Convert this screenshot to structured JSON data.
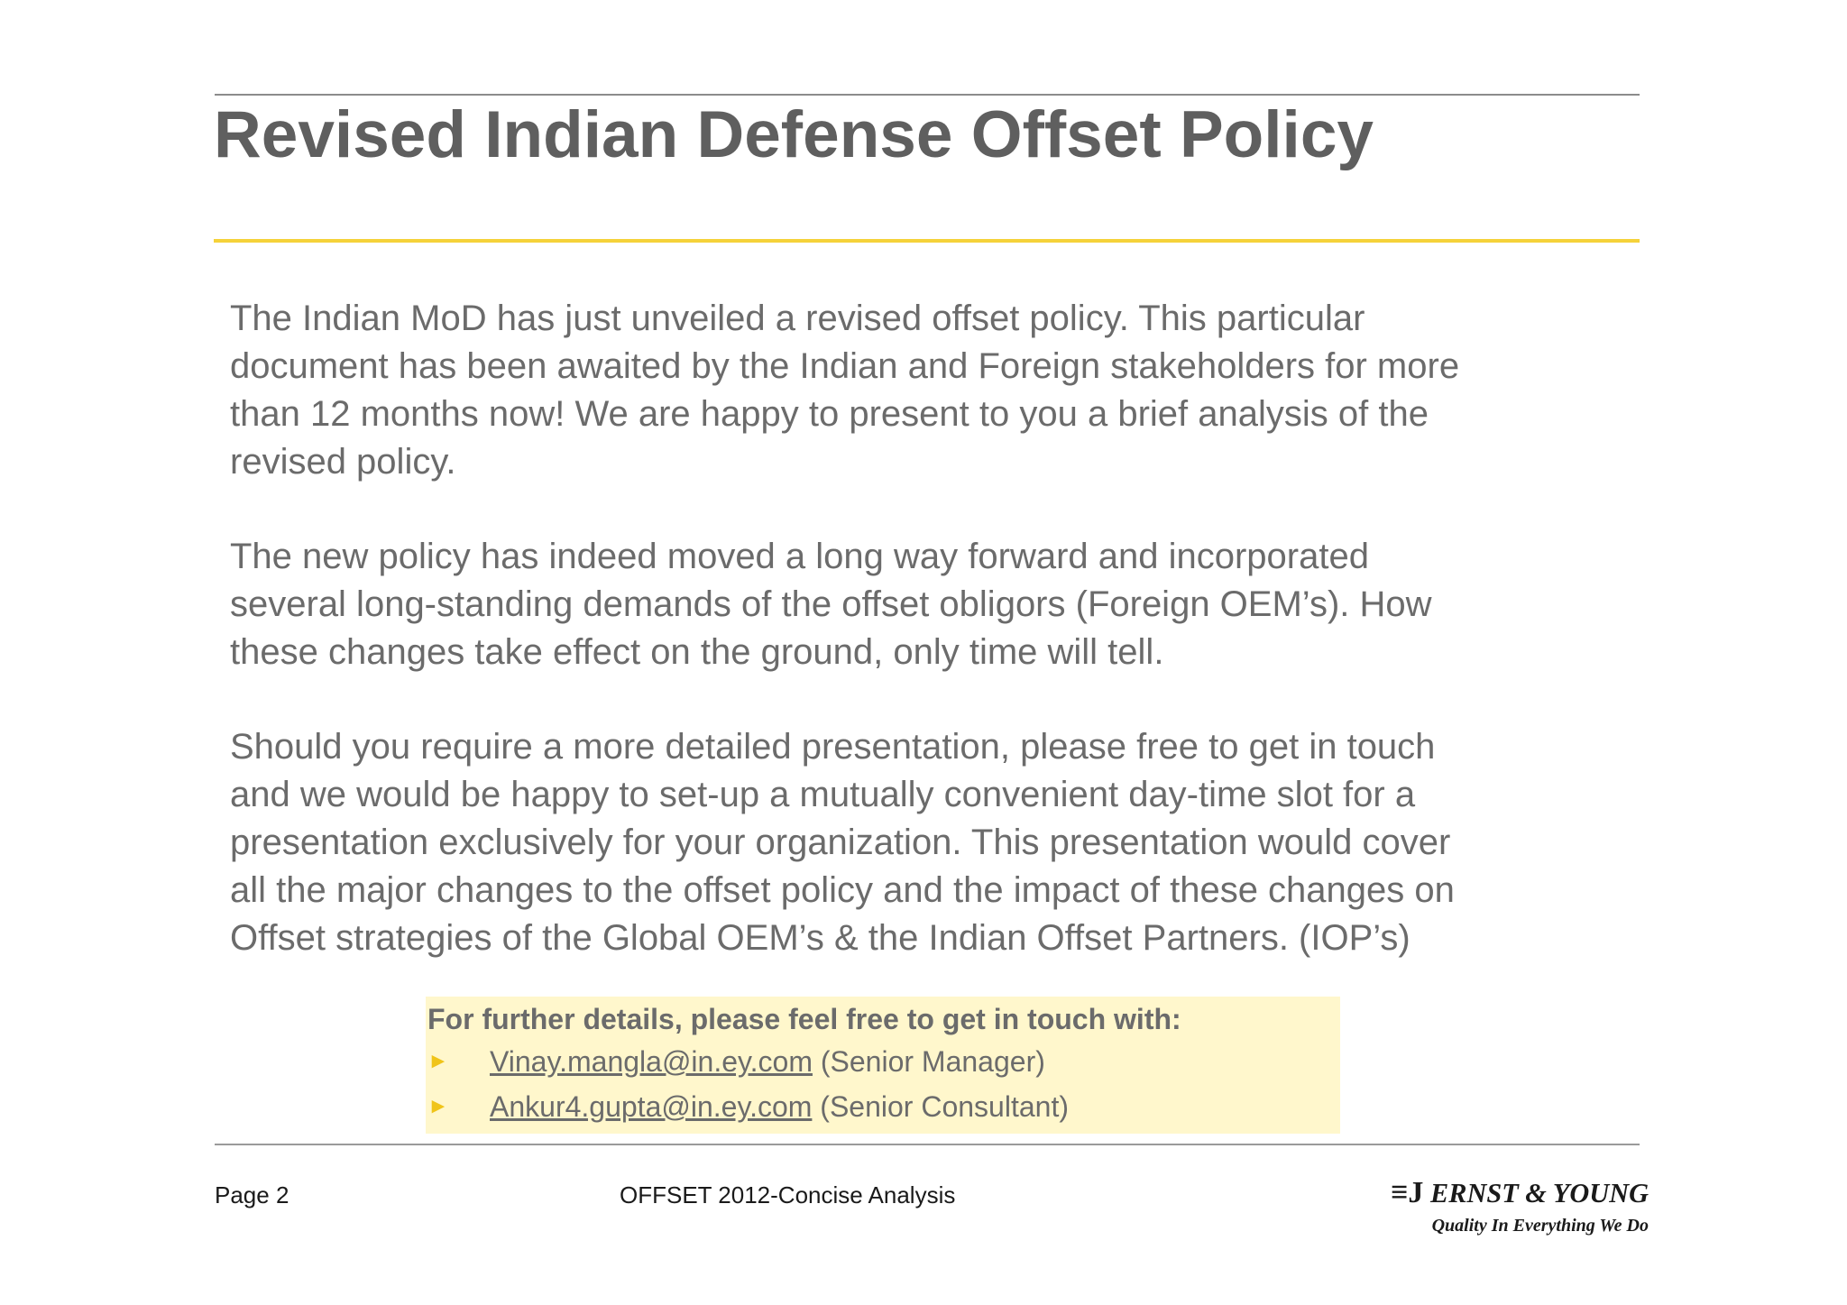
{
  "header": {
    "title": "Revised Indian Defense Offset Policy"
  },
  "body": {
    "paragraphs": [
      {
        "lines": [
          "The Indian MoD has just unveiled a revised offset policy. This particular",
          "document has been awaited by the Indian and Foreign stakeholders for more",
          "than 12 months now! We are happy to present to you a brief analysis of the",
          "revised policy."
        ]
      },
      {
        "lines": [
          "The new policy has indeed moved a long way forward and incorporated",
          "several long-standing demands of the offset obligors (Foreign OEM’s). How",
          "these changes take effect on the ground, only time will tell."
        ]
      },
      {
        "lines": [
          "Should you require a more detailed presentation, please free to get in touch",
          "and we would be happy to set-up a mutually convenient day-time slot for a",
          "presentation exclusively for your organization. This presentation would cover",
          "all the major changes to the offset policy and the impact of these changes on",
          "Offset strategies of the Global OEM’s & the Indian Offset Partners. (IOP’s)"
        ]
      }
    ]
  },
  "contact": {
    "heading": "For further details, please feel free to get in touch with:",
    "bullet_glyph": "►",
    "people": [
      {
        "email": "Vinay.mangla@in.ey.com",
        "role": "(Senior Manager)"
      },
      {
        "email": "Ankur4.gupta@in.ey.com",
        "role": "(Senior Consultant)"
      }
    ],
    "box_color": "#fff7cc",
    "bullet_color": "#f0c419"
  },
  "footer": {
    "page": "Page 2",
    "center_text": "OFFSET 2012-Concise Analysis",
    "logo": {
      "mark": "≡J",
      "name": "ERNST & YOUNG",
      "tagline": "Quality In Everything We Do"
    }
  },
  "colors": {
    "title": "#5f5f5f",
    "accent_rule": "#f5d23a",
    "body_text": "#6b6b6b"
  }
}
